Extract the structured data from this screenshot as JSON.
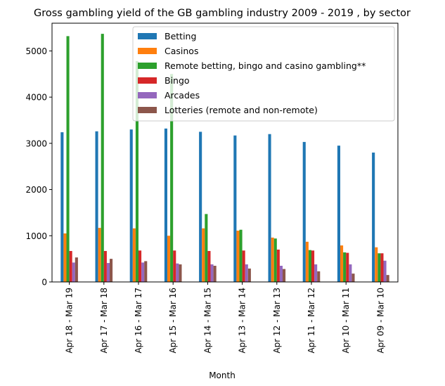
{
  "chart_data": {
    "type": "bar",
    "title": "Gross gambling yield of the GB gambling industry 2009 - 2019 , by sector",
    "xlabel": "Month",
    "ylabel": "",
    "ylim": [
      0,
      5600
    ],
    "yticks": [
      0,
      1000,
      2000,
      3000,
      4000,
      5000
    ],
    "grid": false,
    "legend_position": "top-right",
    "categories": [
      "Apr 18 - Mar 19",
      "Apr 17 - Mar 18",
      "Apr 16 - Mar 17",
      "Apr 15 - Mar 16",
      "Apr 14 - Mar 15",
      "Apr 13 - Mar 14",
      "Apr 12 - Mar 13",
      "Apr 11 - Mar 12",
      "Apr 10 - Mar 11",
      "Apr 09 - Mar 10"
    ],
    "series": [
      {
        "name": "Betting",
        "color": "#1f77b4",
        "values": [
          3240,
          3260,
          3300,
          3320,
          3250,
          3170,
          3200,
          3030,
          2950,
          2800
        ]
      },
      {
        "name": "Casinos",
        "color": "#ff7f0e",
        "values": [
          1050,
          1170,
          1160,
          1000,
          1160,
          1110,
          960,
          870,
          790,
          750
        ]
      },
      {
        "name": "Remote betting, bingo and casino gambling**",
        "color": "#2ca02c",
        "values": [
          5320,
          5370,
          4780,
          4500,
          1470,
          1130,
          940,
          690,
          640,
          620
        ]
      },
      {
        "name": "Bingo",
        "color": "#d62728",
        "values": [
          670,
          670,
          680,
          680,
          670,
          680,
          700,
          680,
          630,
          620
        ]
      },
      {
        "name": "Arcades",
        "color": "#9467bd",
        "values": [
          420,
          410,
          420,
          400,
          380,
          380,
          350,
          380,
          380,
          460
        ]
      },
      {
        "name": "Lotteries (remote and non-remote)",
        "color": "#8c564b",
        "values": [
          530,
          500,
          450,
          380,
          350,
          290,
          280,
          230,
          180,
          150
        ]
      }
    ]
  }
}
